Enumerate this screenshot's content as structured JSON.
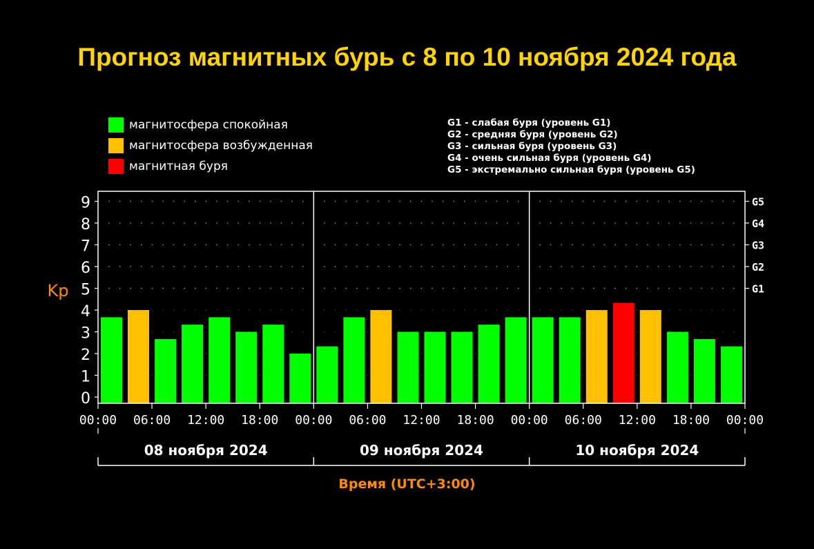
{
  "title": "Прогноз магнитных бурь с 8 по 10 ноября 2024 года",
  "colors": {
    "title": "#ffd400",
    "quiet": "#00ff00",
    "excited": "#ffc000",
    "storm": "#ff0000",
    "axis_label": "#ff8c00",
    "grid_dots": "#888888",
    "frame": "#ffffff"
  },
  "legend": [
    {
      "label": "магнитосфера спокойная",
      "color_key": "quiet"
    },
    {
      "label": "магнитосфера возбужденная",
      "color_key": "excited"
    },
    {
      "label": "магнитная буря",
      "color_key": "storm"
    }
  ],
  "g_legend": [
    "G1 - слабая буря (уровень G1)",
    "G2 - средняя буря (уровень G2)",
    "G3 - сильная буря (уровень G3)",
    "G4 - очень сильная буря (уровень G4)",
    "G5 - экстремально сильная буря (уровень G5)"
  ],
  "chart_data": {
    "type": "bar",
    "title": "Прогноз магнитных бурь с 8 по 10 ноября 2024 года",
    "ylabel": "Kp",
    "xlabel": "Время (UTC+3:00)",
    "ylim": [
      0,
      9
    ],
    "yticks": [
      "0",
      "1",
      "2",
      "3",
      "4",
      "5",
      "6",
      "7",
      "8",
      "9"
    ],
    "g_levels": [
      {
        "label": "G1",
        "kp": 5
      },
      {
        "label": "G2",
        "kp": 6
      },
      {
        "label": "G3",
        "kp": 7
      },
      {
        "label": "G4",
        "kp": 8
      },
      {
        "label": "G5",
        "kp": 9
      }
    ],
    "xticks": [
      "00:00",
      "06:00",
      "12:00",
      "18:00",
      "00:00",
      "06:00",
      "12:00",
      "18:00",
      "00:00",
      "06:00",
      "12:00",
      "18:00",
      "00:00"
    ],
    "days": [
      "08 ноября 2024",
      "09 ноября 2024",
      "10 ноября 2024"
    ],
    "interval_hours": 3,
    "grid": true,
    "values": [
      3.67,
      4.0,
      2.67,
      3.33,
      3.67,
      3.0,
      3.33,
      2.0,
      2.33,
      3.67,
      4.0,
      3.0,
      3.0,
      3.0,
      3.33,
      3.67,
      3.67,
      3.67,
      4.0,
      4.33,
      4.0,
      3.0,
      2.67,
      2.33
    ],
    "levels": [
      "quiet",
      "excited",
      "quiet",
      "quiet",
      "quiet",
      "quiet",
      "quiet",
      "quiet",
      "quiet",
      "quiet",
      "excited",
      "quiet",
      "quiet",
      "quiet",
      "quiet",
      "quiet",
      "quiet",
      "quiet",
      "excited",
      "storm",
      "excited",
      "quiet",
      "quiet",
      "quiet"
    ]
  }
}
